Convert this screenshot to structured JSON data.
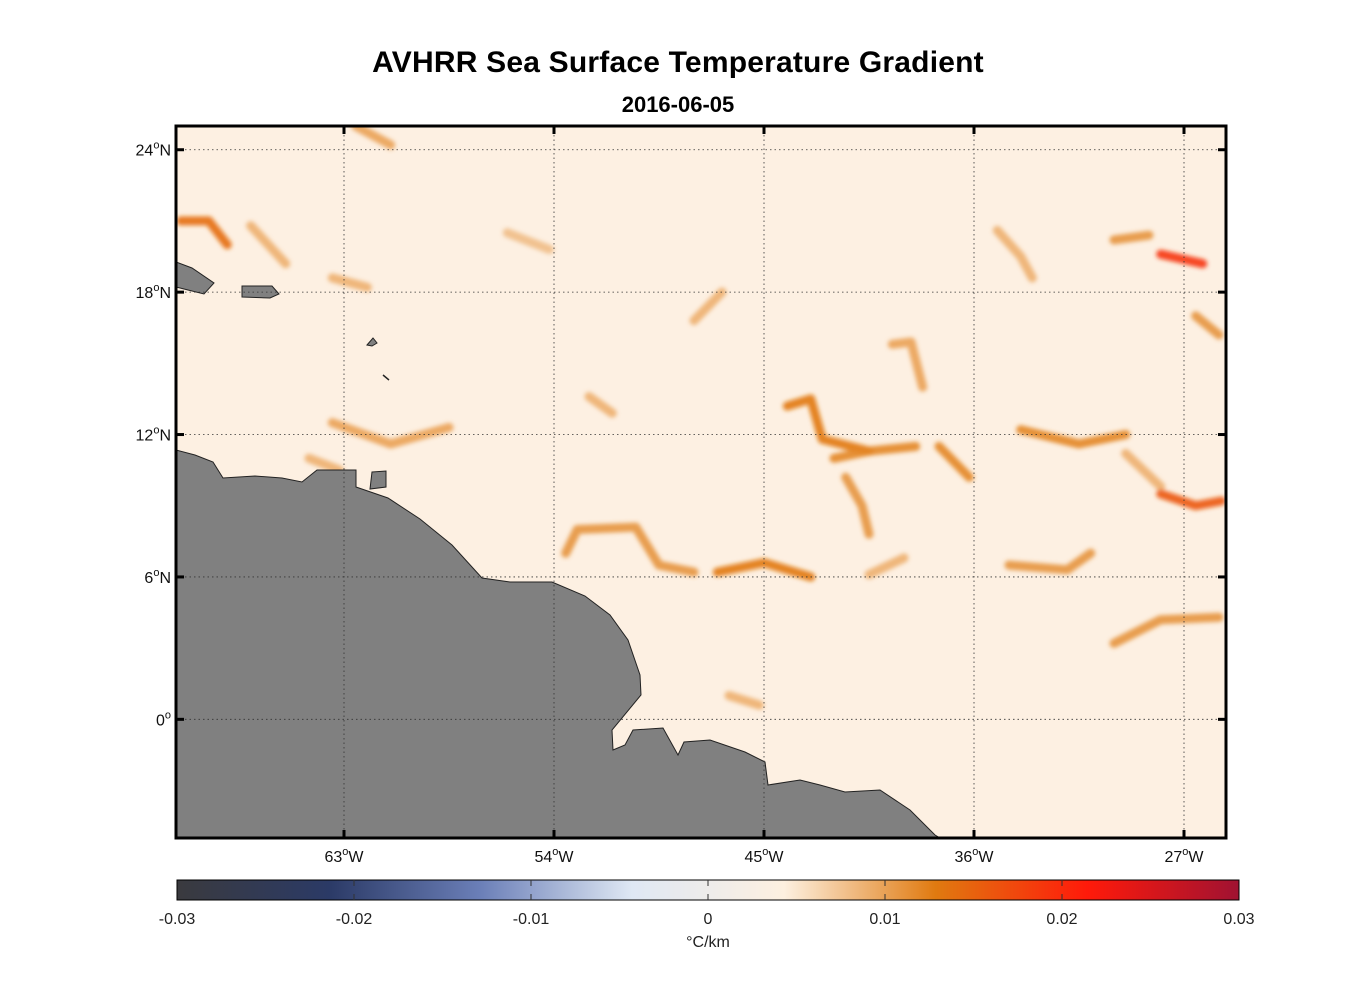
{
  "title": "AVHRR Sea Surface Temperature Gradient",
  "subtitle": "2016-06-05",
  "chart_data": {
    "type": "heatmap",
    "title": "AVHRR Sea Surface Temperature Gradient",
    "subtitle": "2016-06-05",
    "lon_range": [
      -70.2,
      -25.2
    ],
    "lat_range": [
      -5,
      25
    ],
    "lon_ticks": [
      {
        "value": -63,
        "deg": "63",
        "dir": "W"
      },
      {
        "value": -54,
        "deg": "54",
        "dir": "W"
      },
      {
        "value": -45,
        "deg": "45",
        "dir": "W"
      },
      {
        "value": -36,
        "deg": "36",
        "dir": "W"
      },
      {
        "value": -27,
        "deg": "27",
        "dir": "W"
      }
    ],
    "lat_ticks": [
      {
        "value": 24,
        "deg": "24",
        "dir": "N"
      },
      {
        "value": 18,
        "deg": "18",
        "dir": "N"
      },
      {
        "value": 12,
        "deg": "12",
        "dir": "N"
      },
      {
        "value": 6,
        "deg": "6",
        "dir": "N"
      },
      {
        "value": 0,
        "deg": "0",
        "dir": ""
      }
    ],
    "grid": true,
    "land_color": "#808080",
    "colorbar": {
      "range": [
        -0.03,
        0.03
      ],
      "ticks": [
        "-0.03",
        "-0.02",
        "-0.01",
        "0",
        "0.01",
        "0.02",
        "0.03"
      ],
      "unit": "°C/km",
      "colors": [
        "#3a3a3e",
        "#2b3a66",
        "#6b7fb8",
        "#dfe8f4",
        "#fdf0e0",
        "#e07a10",
        "#ff1a0a",
        "#a01232"
      ]
    },
    "fronts": [
      {
        "lon": [
          -70,
          -68.8,
          -68
        ],
        "lat": [
          21,
          21,
          20
        ],
        "v": 0.014
      },
      {
        "lon": [
          -67,
          -65.5
        ],
        "lat": [
          20.8,
          19.2
        ],
        "v": 0.009
      },
      {
        "lon": [
          -63.5,
          -62
        ],
        "lat": [
          18.6,
          18.2
        ],
        "v": 0.009
      },
      {
        "lon": [
          -62.5,
          -61
        ],
        "lat": [
          25,
          24.2
        ],
        "v": 0.01
      },
      {
        "lon": [
          -63.5,
          -61,
          -58.5
        ],
        "lat": [
          12.5,
          11.6,
          12.3
        ],
        "v": 0.01
      },
      {
        "lon": [
          -64.5,
          -63.2
        ],
        "lat": [
          11,
          10.5
        ],
        "v": 0.009
      },
      {
        "lon": [
          -53.5,
          -53,
          -50.5,
          -49.5,
          -48
        ],
        "lat": [
          7,
          8,
          8.1,
          6.5,
          6.2
        ],
        "v": 0.011
      },
      {
        "lon": [
          -47,
          -45,
          -43
        ],
        "lat": [
          6.2,
          6.6,
          6
        ],
        "v": 0.013
      },
      {
        "lon": [
          -40.5,
          -39
        ],
        "lat": [
          6.1,
          6.8
        ],
        "v": 0.009
      },
      {
        "lon": [
          -44,
          -43,
          -42.5,
          -40.5
        ],
        "lat": [
          13.2,
          13.5,
          11.8,
          11.3
        ],
        "v": 0.013
      },
      {
        "lon": [
          -42,
          -40.5,
          -38.5
        ],
        "lat": [
          11,
          11.3,
          11.5
        ],
        "v": 0.012
      },
      {
        "lon": [
          -39.5,
          -38.7,
          -38.2
        ],
        "lat": [
          15.8,
          15.9,
          14
        ],
        "v": 0.01
      },
      {
        "lon": [
          -37.5,
          -36.2
        ],
        "lat": [
          11.5,
          10.2
        ],
        "v": 0.012
      },
      {
        "lon": [
          -41.5,
          -40.8,
          -40.5
        ],
        "lat": [
          10.2,
          9,
          7.8
        ],
        "v": 0.011
      },
      {
        "lon": [
          -34,
          -31.5,
          -29.5
        ],
        "lat": [
          12.2,
          11.6,
          12
        ],
        "v": 0.012
      },
      {
        "lon": [
          -29.5,
          -28
        ],
        "lat": [
          11.2,
          9.8
        ],
        "v": 0.009
      },
      {
        "lon": [
          -28,
          -26.5,
          -25.4
        ],
        "lat": [
          9.5,
          9,
          9.2
        ],
        "v": 0.016
      },
      {
        "lon": [
          -34.5,
          -32,
          -31
        ],
        "lat": [
          6.5,
          6.3,
          7
        ],
        "v": 0.011
      },
      {
        "lon": [
          -30,
          -28,
          -25.5
        ],
        "lat": [
          3.2,
          4.2,
          4.3
        ],
        "v": 0.011
      },
      {
        "lon": [
          -28,
          -26.2
        ],
        "lat": [
          19.6,
          19.2
        ],
        "v": 0.019
      },
      {
        "lon": [
          -30,
          -28.5
        ],
        "lat": [
          20.2,
          20.4
        ],
        "v": 0.011
      },
      {
        "lon": [
          -26.5,
          -25.5
        ],
        "lat": [
          17,
          16.2
        ],
        "v": 0.011
      },
      {
        "lon": [
          -35,
          -34,
          -33.5
        ],
        "lat": [
          20.6,
          19.5,
          18.6
        ],
        "v": 0.009
      },
      {
        "lon": [
          -52.5,
          -51.5
        ],
        "lat": [
          13.6,
          12.9
        ],
        "v": 0.009
      },
      {
        "lon": [
          -46.5,
          -45.2
        ],
        "lat": [
          1,
          0.6
        ],
        "v": 0.009
      },
      {
        "lon": [
          -56,
          -54.2
        ],
        "lat": [
          20.5,
          19.8
        ],
        "v": 0.008
      },
      {
        "lon": [
          -48,
          -46.8
        ],
        "lat": [
          16.8,
          18
        ],
        "v": 0.009
      }
    ]
  }
}
